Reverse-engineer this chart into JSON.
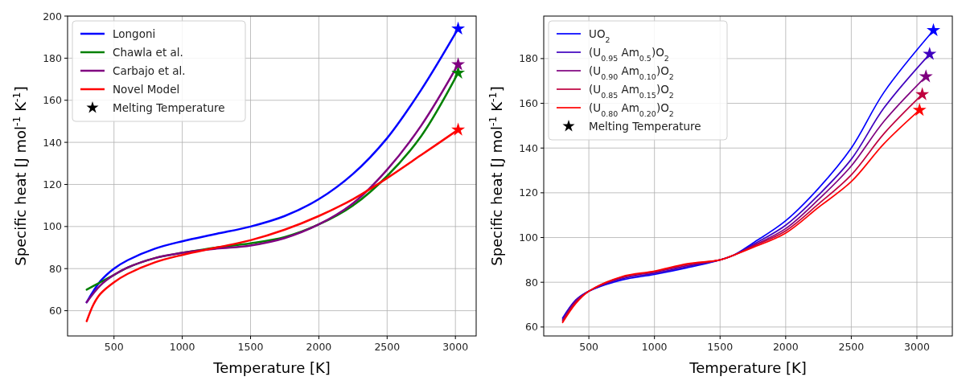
{
  "chart_data": [
    {
      "type": "line",
      "xlabel": "Temperature [K]",
      "ylabel": "Specific heat [J mol$^{-1}$ K$^{-1}$]",
      "xlim": [
        160,
        3152
      ],
      "ylim": [
        48,
        200
      ],
      "xticks": [
        500,
        1000,
        1500,
        2000,
        2500,
        3000
      ],
      "yticks": [
        60,
        80,
        100,
        120,
        140,
        160,
        180,
        200
      ],
      "grid": true,
      "legend": "top left",
      "marker": "none",
      "line_style": "solid",
      "series": [
        {
          "name": "Longoni",
          "color": "#0000ff",
          "x": [
            300,
            400,
            500,
            600,
            800,
            1000,
            1250,
            1500,
            1750,
            2000,
            2250,
            2500,
            2750,
            3020
          ],
          "values": [
            64,
            74,
            80,
            84,
            89.5,
            93,
            96.5,
            100,
            105,
            113,
            125,
            142,
            165,
            194
          ]
        },
        {
          "name": "Chawla et al.",
          "color": "#008000",
          "x": [
            300,
            400,
            500,
            600,
            800,
            1000,
            1250,
            1500,
            1750,
            2000,
            2250,
            2500,
            2750,
            3020
          ],
          "values": [
            70,
            73.5,
            77,
            80.5,
            85,
            87.5,
            90,
            92,
            95,
            101,
            110,
            124,
            143,
            173
          ]
        },
        {
          "name": "Carbajo et al.",
          "color": "#800080",
          "x": [
            300,
            400,
            500,
            600,
            800,
            1000,
            1250,
            1500,
            1750,
            2000,
            2250,
            2500,
            2750,
            3020
          ],
          "values": [
            64,
            72,
            77,
            80.5,
            85,
            87.5,
            89.5,
            91,
            94.5,
            101,
            111,
            127,
            148,
            177
          ]
        },
        {
          "name": "Novel Model",
          "color": "#ff0000",
          "x": [
            300,
            350,
            400,
            500,
            600,
            800,
            1000,
            1250,
            1500,
            1750,
            2000,
            2250,
            2500,
            2750,
            3020
          ],
          "values": [
            55,
            63,
            68,
            73.5,
            77.5,
            83,
            86.5,
            90,
            93.5,
            98.5,
            105,
            113,
            123,
            134,
            146
          ]
        },
        {
          "type": "scatter",
          "marker": "star",
          "x": [
            3020,
            3020,
            3020,
            3020
          ],
          "values": [
            194,
            173,
            177,
            146
          ],
          "colors": [
            "#0000ff",
            "#008000",
            "#800080",
            "#ff0000"
          ]
        }
      ],
      "annotations": [
        "Melting Temperature"
      ]
    },
    {
      "type": "line",
      "xlabel": "Temperature [K]",
      "ylabel": "Specific heat [J mol$^{-1}$ K$^{-1}$]",
      "xlim": [
        156,
        3270
      ],
      "ylim": [
        56,
        199
      ],
      "xticks": [
        500,
        1000,
        1500,
        2000,
        2500,
        3000
      ],
      "yticks": [
        60,
        80,
        100,
        120,
        140,
        160,
        180
      ],
      "grid": true,
      "legend": "top left",
      "marker": "none",
      "line_style": "solid",
      "series": [
        {
          "name": "UO$_{2}$",
          "color": "#0000ff",
          "x": [
            300,
            400,
            500,
            750,
            1000,
            1250,
            1500,
            1600,
            1750,
            2000,
            2250,
            2500,
            2750,
            3126
          ],
          "values": [
            64,
            72,
            76,
            81,
            83.5,
            86.5,
            90,
            92,
            97.5,
            107.5,
            122,
            140,
            165,
            192.6
          ]
        },
        {
          "name": "(U$_{0.95}$ Am$_{0.5}$)O$_{2}$",
          "color": "#3f00bf",
          "x": [
            300,
            400,
            500,
            750,
            1000,
            1250,
            1500,
            1600,
            1750,
            2000,
            2250,
            2500,
            2750,
            3097
          ],
          "values": [
            63.5,
            72,
            76,
            81.5,
            84,
            87,
            90,
            92,
            96.8,
            105.5,
            119,
            135,
            158,
            182
          ]
        },
        {
          "name": "(U$_{0.90}$ Am$_{0.10}$)O$_{2}$",
          "color": "#7f007f",
          "x": [
            300,
            400,
            500,
            750,
            1000,
            1250,
            1500,
            1600,
            1750,
            2000,
            2250,
            2500,
            2750,
            3069
          ],
          "values": [
            63,
            71.5,
            76,
            82,
            84.5,
            87.5,
            90,
            92,
            96.3,
            104,
            117,
            132,
            152,
            172
          ]
        },
        {
          "name": "(U$_{0.85}$ Am$_{0.15}$)O$_{2}$",
          "color": "#bf003f",
          "x": [
            300,
            400,
            500,
            750,
            1000,
            1250,
            1500,
            1600,
            1750,
            2000,
            2250,
            2500,
            2750,
            3041
          ],
          "values": [
            62.5,
            71,
            76,
            82.3,
            84.8,
            88,
            90,
            92,
            96,
            103,
            115,
            128,
            146.5,
            164
          ]
        },
        {
          "name": "(U$_{0.80}$ Am$_{0.20}$)O$_{2}$",
          "color": "#ff0000",
          "x": [
            300,
            400,
            500,
            750,
            1000,
            1250,
            1500,
            1600,
            1750,
            2000,
            2250,
            2500,
            2750,
            3020
          ],
          "values": [
            62,
            70.5,
            76,
            82.5,
            85,
            88.3,
            90,
            92,
            95.5,
            102,
            113.5,
            125,
            142,
            157
          ]
        },
        {
          "type": "scatter",
          "marker": "star",
          "x": [
            3126,
            3097,
            3069,
            3041,
            3020
          ],
          "values": [
            192.6,
            182,
            172,
            164,
            157
          ],
          "colors": [
            "#0000ff",
            "#3f00bf",
            "#7f007f",
            "#bf003f",
            "#ff0000"
          ]
        }
      ],
      "annotations": [
        "Melting Temperature"
      ]
    }
  ]
}
